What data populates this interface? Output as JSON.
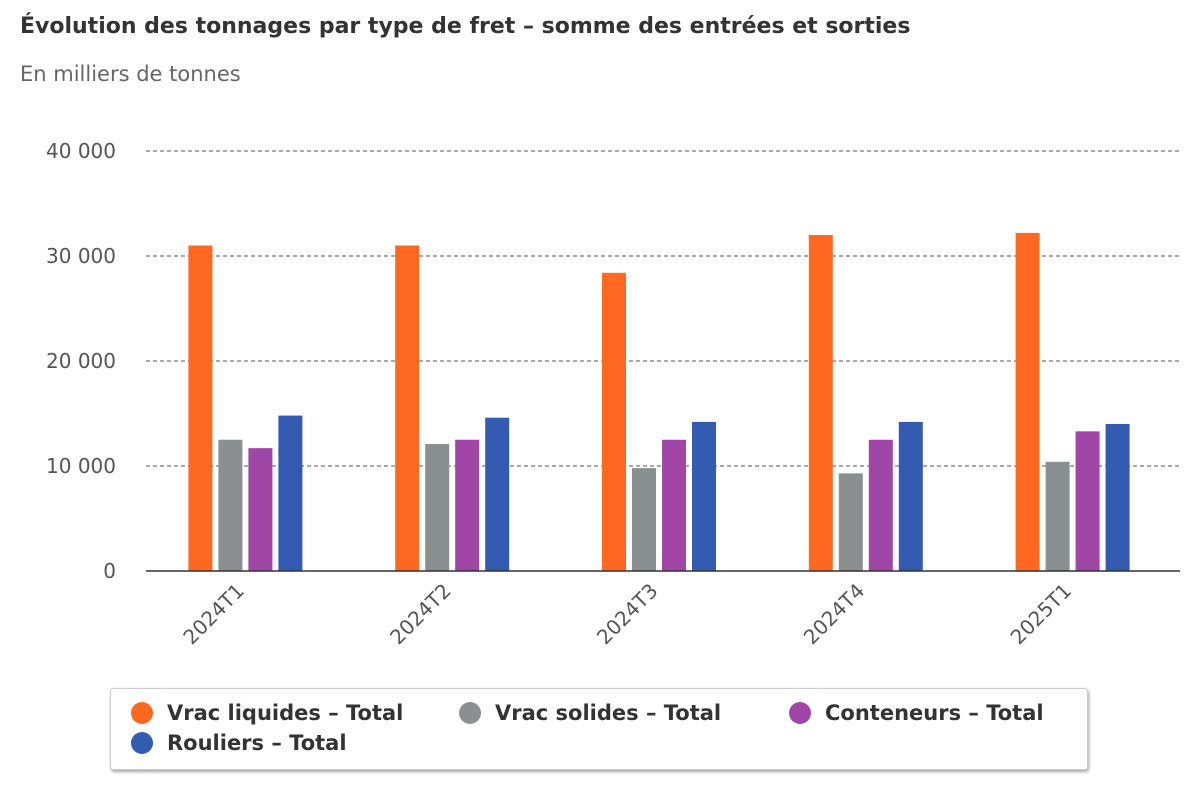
{
  "chart_data": {
    "type": "bar",
    "title": "Évolution des tonnages par type de fret – somme des entrées et sorties",
    "subtitle": "En milliers de tonnes",
    "categories": [
      "2024T1",
      "2024T2",
      "2024T3",
      "2024T4",
      "2025T1"
    ],
    "series": [
      {
        "name": "Vrac liquides – Total",
        "color": "#ff6820",
        "values": [
          31000,
          31000,
          28400,
          32000,
          32200
        ]
      },
      {
        "name": "Vrac solides – Total",
        "color": "#8a9090",
        "values": [
          12500,
          12100,
          9800,
          9300,
          10400
        ]
      },
      {
        "name": "Conteneurs – Total",
        "color": "#a046a6",
        "values": [
          11700,
          12500,
          12500,
          12500,
          13300
        ]
      },
      {
        "name": "Rouliers – Total",
        "color": "#335bb2",
        "values": [
          14800,
          14600,
          14200,
          14200,
          14000
        ]
      }
    ],
    "yticks": [
      "0",
      "10 000",
      "20 000",
      "30 000",
      "40 000"
    ],
    "ylim": [
      0,
      40000
    ],
    "grid": true,
    "legend_position": "bottom"
  }
}
